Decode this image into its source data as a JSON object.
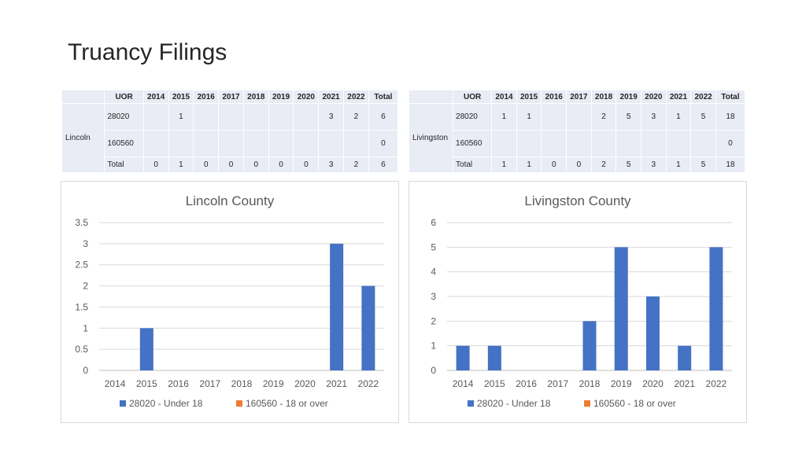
{
  "page": {
    "title": "Truancy Filings"
  },
  "tables": [
    {
      "county": "Lincoln",
      "headers": [
        "UOR",
        "2014",
        "2015",
        "2016",
        "2017",
        "2018",
        "2019",
        "2020",
        "2021",
        "2022",
        "Total"
      ],
      "rows": [
        [
          "28020",
          "",
          "1",
          "",
          "",
          "",
          "",
          "",
          "3",
          "2",
          "6"
        ],
        [
          "160560",
          "",
          "",
          "",
          "",
          "",
          "",
          "",
          "",
          "",
          "0"
        ],
        [
          "Total",
          "0",
          "1",
          "0",
          "0",
          "0",
          "0",
          "0",
          "3",
          "2",
          "6"
        ]
      ]
    },
    {
      "county": "Livingston",
      "headers": [
        "UOR",
        "2014",
        "2015",
        "2016",
        "2017",
        "2018",
        "2019",
        "2020",
        "2021",
        "2022",
        "Total"
      ],
      "rows": [
        [
          "28020",
          "1",
          "1",
          "",
          "",
          "2",
          "5",
          "3",
          "1",
          "5",
          "18"
        ],
        [
          "160560",
          "",
          "",
          "",
          "",
          "",
          "",
          "",
          "",
          "",
          "0"
        ],
        [
          "Total",
          "1",
          "1",
          "0",
          "0",
          "2",
          "5",
          "3",
          "1",
          "5",
          "18"
        ]
      ]
    }
  ],
  "chart_data": [
    {
      "type": "bar",
      "title": "Lincoln County",
      "categories": [
        "2014",
        "2015",
        "2016",
        "2017",
        "2018",
        "2019",
        "2020",
        "2021",
        "2022"
      ],
      "series": [
        {
          "name": "28020 - Under 18",
          "values": [
            0,
            1,
            0,
            0,
            0,
            0,
            0,
            3,
            2
          ],
          "color": "#4472c4"
        },
        {
          "name": "160560 - 18 or over",
          "values": [
            0,
            0,
            0,
            0,
            0,
            0,
            0,
            0,
            0
          ],
          "color": "#ed7d31"
        }
      ],
      "ylim": [
        0,
        3.5
      ],
      "yticks": [
        "0",
        "0.5",
        "1",
        "1.5",
        "2",
        "2.5",
        "3",
        "3.5"
      ],
      "grid": true,
      "legend": "bottom"
    },
    {
      "type": "bar",
      "title": "Livingston County",
      "categories": [
        "2014",
        "2015",
        "2016",
        "2017",
        "2018",
        "2019",
        "2020",
        "2021",
        "2022"
      ],
      "series": [
        {
          "name": "28020 - Under 18",
          "values": [
            1,
            1,
            0,
            0,
            2,
            5,
            3,
            1,
            5
          ],
          "color": "#4472c4"
        },
        {
          "name": "160560 - 18 or over",
          "values": [
            0,
            0,
            0,
            0,
            0,
            0,
            0,
            0,
            0
          ],
          "color": "#ed7d31"
        }
      ],
      "ylim": [
        0,
        6
      ],
      "yticks": [
        "0",
        "1",
        "2",
        "3",
        "4",
        "5",
        "6"
      ],
      "grid": true,
      "legend": "bottom"
    }
  ]
}
